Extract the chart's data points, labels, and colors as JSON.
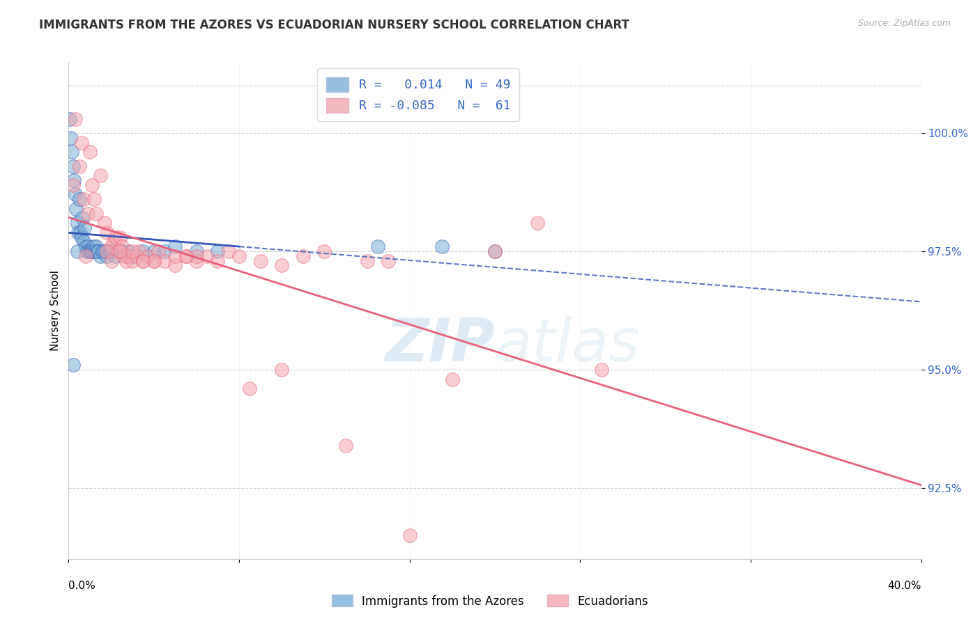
{
  "title": "IMMIGRANTS FROM THE AZORES VS ECUADORIAN NURSERY SCHOOL CORRELATION CHART",
  "source": "Source: ZipAtlas.com",
  "ylabel": "Nursery School",
  "xlim": [
    0.0,
    40.0
  ],
  "ylim": [
    91.0,
    101.5
  ],
  "legend_blue_r": "0.014",
  "legend_blue_n": "49",
  "legend_pink_r": "-0.085",
  "legend_pink_n": "61",
  "blue_color": "#7BAFD4",
  "pink_color": "#F4A7B0",
  "blue_line_color": "#3355BB",
  "pink_line_color": "#E8607A",
  "blue_scatter_x": [
    0.05,
    0.1,
    0.15,
    0.2,
    0.25,
    0.3,
    0.35,
    0.4,
    0.45,
    0.5,
    0.55,
    0.6,
    0.65,
    0.7,
    0.75,
    0.8,
    0.85,
    0.9,
    0.95,
    1.0,
    1.05,
    1.1,
    1.15,
    1.2,
    1.25,
    1.3,
    1.35,
    1.4,
    1.5,
    1.6,
    1.7,
    1.8,
    1.9,
    2.0,
    2.2,
    2.5,
    2.8,
    3.0,
    3.5,
    4.0,
    4.5,
    5.0,
    6.0,
    7.0,
    14.5,
    17.5,
    20.0,
    0.2,
    0.4
  ],
  "blue_scatter_y": [
    100.3,
    99.9,
    99.6,
    99.3,
    99.0,
    98.7,
    98.4,
    98.1,
    97.9,
    98.6,
    97.9,
    97.8,
    98.2,
    97.7,
    98.0,
    97.6,
    97.5,
    97.6,
    97.5,
    97.5,
    97.5,
    97.5,
    97.6,
    97.5,
    97.5,
    97.6,
    97.5,
    97.5,
    97.4,
    97.5,
    97.5,
    97.4,
    97.5,
    97.5,
    97.4,
    97.5,
    97.5,
    97.4,
    97.5,
    97.5,
    97.5,
    97.6,
    97.5,
    97.5,
    97.6,
    97.6,
    97.5,
    95.1,
    97.5
  ],
  "pink_scatter_x": [
    0.2,
    0.5,
    0.7,
    0.9,
    1.0,
    1.1,
    1.3,
    1.5,
    1.7,
    1.8,
    2.0,
    2.1,
    2.2,
    2.3,
    2.4,
    2.5,
    2.6,
    2.7,
    2.8,
    3.0,
    3.2,
    3.3,
    3.5,
    3.7,
    4.0,
    4.2,
    4.5,
    5.0,
    5.5,
    6.0,
    6.5,
    7.0,
    7.5,
    8.0,
    9.0,
    10.0,
    11.0,
    12.0,
    14.0,
    15.0,
    18.0,
    20.0,
    22.0,
    0.3,
    0.6,
    1.2,
    1.8,
    2.4,
    3.0,
    4.0,
    5.0,
    6.0,
    8.5,
    10.0,
    13.0,
    16.0,
    25.0,
    0.8,
    2.0,
    3.5,
    5.5
  ],
  "pink_scatter_y": [
    98.9,
    99.3,
    98.6,
    98.3,
    99.6,
    98.9,
    98.3,
    99.1,
    98.1,
    97.9,
    97.6,
    97.7,
    97.8,
    97.5,
    97.8,
    97.6,
    97.4,
    97.3,
    97.4,
    97.3,
    97.4,
    97.5,
    97.3,
    97.4,
    97.3,
    97.5,
    97.3,
    97.2,
    97.4,
    97.3,
    97.4,
    97.3,
    97.5,
    97.4,
    97.3,
    97.2,
    97.4,
    97.5,
    97.3,
    97.3,
    94.8,
    97.5,
    98.1,
    100.3,
    99.8,
    98.6,
    97.5,
    97.5,
    97.5,
    97.3,
    97.4,
    97.4,
    94.6,
    95.0,
    93.4,
    91.5,
    95.0,
    97.4,
    97.3,
    97.3,
    97.4
  ],
  "watermark_zip": "ZIP",
  "watermark_atlas": "atlas",
  "background_color": "#ffffff",
  "ytick_vals": [
    92.5,
    95.0,
    97.5,
    100.0
  ],
  "ytick_labels": [
    "92.5%",
    "95.0%",
    "97.5%",
    "100.0%"
  ]
}
